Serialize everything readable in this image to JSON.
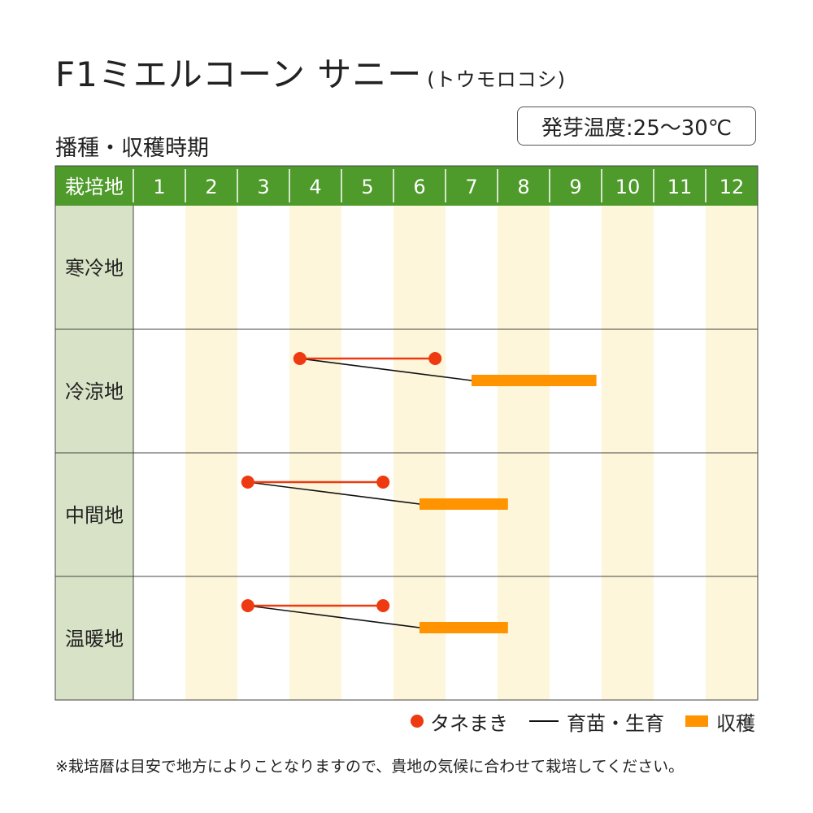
{
  "title": "F1ミエルコーン サニー",
  "subtitle": "(トウモロコシ)",
  "section_title": "播種・収穫時期",
  "germination_temp": "発芽温度:25〜30℃",
  "note": "※栽培暦は目安で地方によりことなりますので、貴地の気候に合わせて栽培してください。",
  "legend": {
    "sowing": "タネまき",
    "growing": "育苗・生育",
    "harvest": "収穫"
  },
  "colors": {
    "header_bg": "#4e9a2a",
    "region_bg": "#d8e2c6",
    "stripe_bg": "#fdf6da",
    "sowing": "#ee3a10",
    "growing": "#111111",
    "harvest": "#ff9300"
  },
  "chart_data": {
    "type": "table",
    "header_label": "栽培地",
    "months": [
      "1",
      "2",
      "3",
      "4",
      "5",
      "6",
      "7",
      "8",
      "9",
      "10",
      "11",
      "12"
    ],
    "regions": [
      {
        "name": "寒冷地"
      },
      {
        "name": "冷涼地",
        "sowing": [
          4.2,
          6.8
        ],
        "growing": [
          4.2,
          7.5
        ],
        "harvest": [
          7.5,
          9.9
        ]
      },
      {
        "name": "中間地",
        "sowing": [
          3.2,
          5.8
        ],
        "growing": [
          3.2,
          6.5
        ],
        "harvest": [
          6.5,
          8.2
        ]
      },
      {
        "name": "温暖地",
        "sowing": [
          3.2,
          5.8
        ],
        "growing": [
          3.2,
          6.5
        ],
        "harvest": [
          6.5,
          8.2
        ]
      }
    ]
  }
}
